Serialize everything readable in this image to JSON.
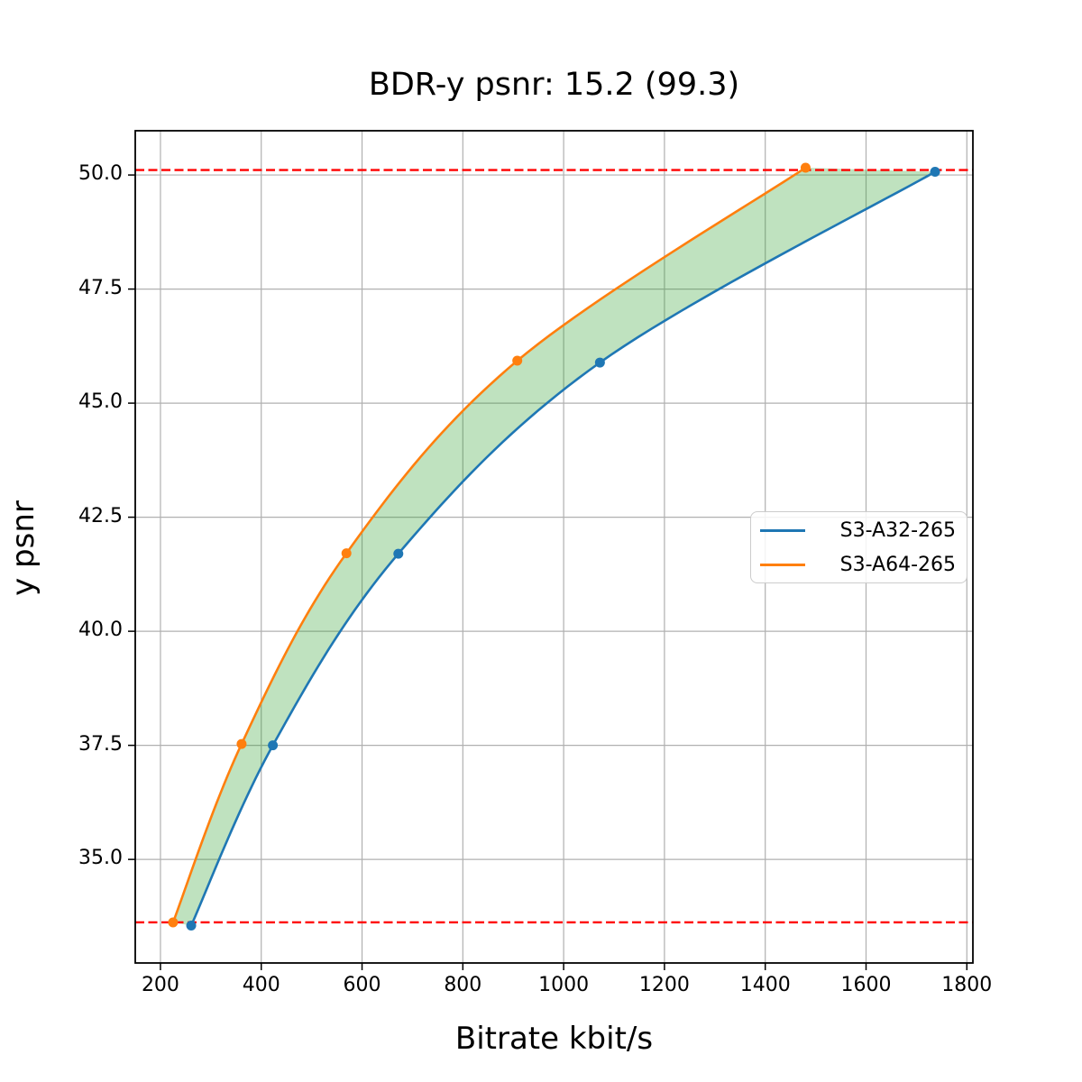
{
  "chart_data": {
    "type": "line",
    "title": "BDR-y psnr: 15.2 (99.3)",
    "xlabel": "Bitrate kbit/s",
    "ylabel": "y psnr",
    "xlim": [
      150,
      1812
    ],
    "ylim": [
      32.73,
      50.97
    ],
    "grid": true,
    "x_ticks": [
      {
        "value": 200,
        "label": "200"
      },
      {
        "value": 400,
        "label": "400"
      },
      {
        "value": 600,
        "label": "600"
      },
      {
        "value": 800,
        "label": "800"
      },
      {
        "value": 1000,
        "label": "1000"
      },
      {
        "value": 1200,
        "label": "1200"
      },
      {
        "value": 1400,
        "label": "1400"
      },
      {
        "value": 1600,
        "label": "1600"
      },
      {
        "value": 1800,
        "label": "1800"
      }
    ],
    "y_ticks": [
      {
        "value": 35.0,
        "label": "35.0"
      },
      {
        "value": 37.5,
        "label": "37.5"
      },
      {
        "value": 40.0,
        "label": "40.0"
      },
      {
        "value": 42.5,
        "label": "42.5"
      },
      {
        "value": 45.0,
        "label": "45.0"
      },
      {
        "value": 47.5,
        "label": "47.5"
      },
      {
        "value": 50.0,
        "label": "50.0"
      }
    ],
    "series": [
      {
        "name": "S3-A32-265",
        "color": "#1f77b4",
        "points": [
          [
            261,
            33.55
          ],
          [
            423,
            37.5
          ],
          [
            672,
            41.7
          ],
          [
            1072,
            45.89
          ],
          [
            1737,
            50.07
          ]
        ]
      },
      {
        "name": "S3-A64-265",
        "color": "#ff7f0e",
        "points": [
          [
            225,
            33.62
          ],
          [
            361,
            37.53
          ],
          [
            569,
            41.71
          ],
          [
            908,
            45.93
          ],
          [
            1480,
            50.16
          ]
        ]
      }
    ],
    "fill_between": {
      "series": [
        "S3-A64-265",
        "S3-A32-265"
      ],
      "color": "#2ca02c",
      "alpha": 0.3
    },
    "hlines": {
      "values": [
        50.11,
        33.62
      ],
      "color": "#ff0000",
      "style": "dashed"
    },
    "legend": {
      "position": "center-right"
    },
    "colors": {
      "grid": "#b0b0b0",
      "frame": "#000000",
      "background": "#ffffff"
    }
  }
}
